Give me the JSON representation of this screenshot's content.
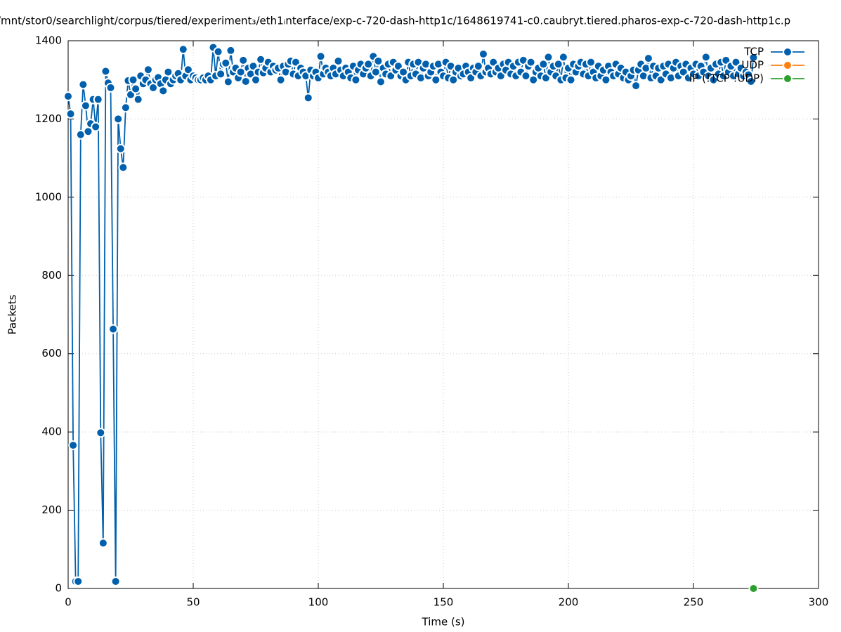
{
  "chart_data": {
    "type": "line",
    "title": "/mnt/stor0/searchlight/corpus/tiered/experiment₃/eth1ᵢnterface/exp-c-720-dash-http1c/1648619741-c0.caubryt.tiered.pharos-exp-c-720-dash-http1c.p",
    "x_label": "Time (s)",
    "y_label": "Packets",
    "xlim": [
      0,
      300
    ],
    "xticks": [
      0,
      50,
      100,
      150,
      200,
      250,
      300
    ],
    "ylim": [
      0,
      1400
    ],
    "yticks": [
      0,
      200,
      400,
      600,
      800,
      1000,
      1200,
      1400
    ],
    "grid": true,
    "legend": "top-right",
    "series": [
      {
        "name": "TCP",
        "color": "#0060ad",
        "x": [
          0,
          1,
          2,
          3,
          4,
          5,
          6,
          7,
          8,
          9,
          10,
          11,
          12,
          13,
          14,
          15,
          16,
          17,
          18,
          19,
          20,
          21,
          22,
          23,
          24,
          25,
          26,
          27,
          28,
          29,
          30,
          31,
          32,
          33,
          34,
          35,
          36,
          37,
          38,
          39,
          40,
          41,
          42,
          43,
          44,
          45,
          46,
          47,
          48,
          49,
          50,
          51,
          52,
          53,
          54,
          55,
          56,
          57,
          58,
          59,
          60,
          61,
          62,
          63,
          64,
          65,
          66,
          67,
          68,
          69,
          70,
          71,
          72,
          73,
          74,
          75,
          76,
          77,
          78,
          79,
          80,
          81,
          82,
          83,
          84,
          85,
          86,
          87,
          88,
          89,
          90,
          91,
          92,
          93,
          94,
          95,
          96,
          97,
          98,
          99,
          100,
          101,
          102,
          103,
          104,
          105,
          106,
          107,
          108,
          109,
          110,
          111,
          112,
          113,
          114,
          115,
          116,
          117,
          118,
          119,
          120,
          121,
          122,
          123,
          124,
          125,
          126,
          127,
          128,
          129,
          130,
          131,
          132,
          133,
          134,
          135,
          136,
          137,
          138,
          139,
          140,
          141,
          142,
          143,
          144,
          145,
          146,
          147,
          148,
          149,
          150,
          151,
          152,
          153,
          154,
          155,
          156,
          157,
          158,
          159,
          160,
          161,
          162,
          163,
          164,
          165,
          166,
          167,
          168,
          169,
          170,
          171,
          172,
          173,
          174,
          175,
          176,
          177,
          178,
          179,
          180,
          181,
          182,
          183,
          184,
          185,
          186,
          187,
          188,
          189,
          190,
          191,
          192,
          193,
          194,
          195,
          196,
          197,
          198,
          199,
          200,
          201,
          202,
          203,
          204,
          205,
          206,
          207,
          208,
          209,
          210,
          211,
          212,
          213,
          214,
          215,
          216,
          217,
          218,
          219,
          220,
          221,
          222,
          223,
          224,
          225,
          226,
          227,
          228,
          229,
          230,
          231,
          232,
          233,
          234,
          235,
          236,
          237,
          238,
          239,
          240,
          241,
          242,
          243,
          244,
          245,
          246,
          247,
          248,
          249,
          250,
          251,
          252,
          253,
          254,
          255,
          256,
          257,
          258,
          259,
          260,
          261,
          262,
          263,
          264,
          265,
          266,
          267,
          268,
          269,
          270,
          271,
          272,
          273,
          274
        ],
        "values": [
          1258,
          1213,
          366,
          18,
          18,
          1160,
          1288,
          1234,
          1168,
          1188,
          1250,
          1180,
          1250,
          398,
          116,
          1322,
          1292,
          1280,
          663,
          18,
          1200,
          1124,
          1076,
          1229,
          1298,
          1262,
          1300,
          1277,
          1250,
          1310,
          1290,
          1300,
          1326,
          1290,
          1280,
          1300,
          1306,
          1290,
          1272,
          1300,
          1320,
          1290,
          1300,
          1310,
          1316,
          1300,
          1378,
          1310,
          1326,
          1300,
          1310,
          1305,
          1300,
          1300,
          1305,
          1300,
          1310,
          1300,
          1383,
          1310,
          1372,
          1315,
          1340,
          1343,
          1295,
          1375,
          1320,
          1330,
          1305,
          1320,
          1350,
          1296,
          1330,
          1315,
          1335,
          1300,
          1320,
          1352,
          1318,
          1330,
          1345,
          1320,
          1335,
          1325,
          1330,
          1300,
          1335,
          1320,
          1340,
          1348,
          1315,
          1345,
          1310,
          1330,
          1320,
          1310,
          1254,
          1325,
          1310,
          1320,
          1305,
          1360,
          1315,
          1330,
          1320,
          1310,
          1330,
          1315,
          1348,
          1325,
          1310,
          1330,
          1320,
          1305,
          1335,
          1300,
          1325,
          1340,
          1315,
          1330,
          1340,
          1310,
          1360,
          1320,
          1348,
          1295,
          1330,
          1315,
          1340,
          1310,
          1345,
          1325,
          1335,
          1310,
          1320,
          1300,
          1345,
          1310,
          1340,
          1315,
          1345,
          1305,
          1330,
          1340,
          1310,
          1320,
          1335,
          1300,
          1340,
          1320,
          1310,
          1345,
          1305,
          1335,
          1300,
          1320,
          1330,
          1310,
          1315,
          1335,
          1320,
          1305,
          1330,
          1320,
          1335,
          1310,
          1366,
          1320,
          1330,
          1315,
          1345,
          1320,
          1330,
          1310,
          1340,
          1325,
          1345,
          1315,
          1335,
          1310,
          1345,
          1320,
          1350,
          1310,
          1335,
          1345,
          1300,
          1320,
          1330,
          1310,
          1340,
          1305,
          1358,
          1320,
          1335,
          1310,
          1340,
          1300,
          1358,
          1305,
          1330,
          1300,
          1340,
          1320,
          1335,
          1345,
          1315,
          1340,
          1310,
          1345,
          1320,
          1305,
          1335,
          1310,
          1325,
          1300,
          1335,
          1320,
          1310,
          1340,
          1315,
          1330,
          1305,
          1320,
          1300,
          1310,
          1325,
          1285,
          1325,
          1340,
          1310,
          1330,
          1355,
          1305,
          1335,
          1310,
          1330,
          1300,
          1335,
          1315,
          1340,
          1305,
          1330,
          1345,
          1310,
          1335,
          1320,
          1340,
          1305,
          1330,
          1315,
          1340,
          1310,
          1335,
          1320,
          1358,
          1310,
          1330,
          1300,
          1340,
          1315,
          1345,
          1310,
          1350,
          1320,
          1335,
          1310,
          1345,
          1315,
          1330,
          1310,
          1320,
          1313,
          1296,
          1357
        ]
      },
      {
        "name": "UDP",
        "color": "#ff7f0e",
        "x": [
          274
        ],
        "values": [
          0
        ]
      },
      {
        "name": "IP (!TCP !UDP)",
        "color": "#2ca02c",
        "x": [
          274
        ],
        "values": [
          0
        ]
      }
    ]
  }
}
